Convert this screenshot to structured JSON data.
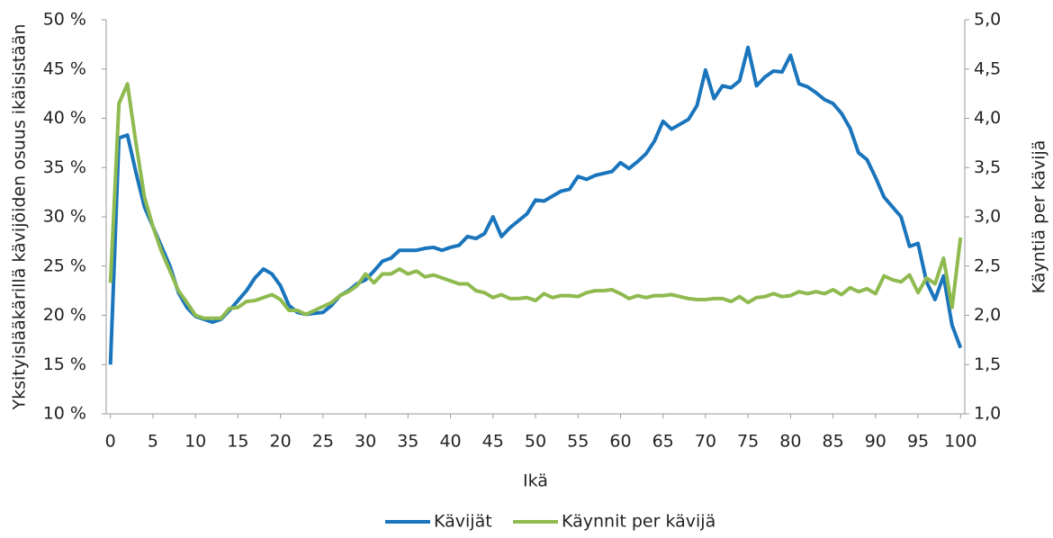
{
  "chart_data": {
    "type": "line",
    "x_label": "Ikä",
    "y_label": "Yksityislääkärillä kävijöiden osuus ikäisistään",
    "y2_label": "Käyntiä per kävijä",
    "x": [
      0,
      1,
      2,
      3,
      4,
      5,
      6,
      7,
      8,
      9,
      10,
      11,
      12,
      13,
      14,
      15,
      16,
      17,
      18,
      19,
      20,
      21,
      22,
      23,
      24,
      25,
      26,
      27,
      28,
      29,
      30,
      31,
      32,
      33,
      34,
      35,
      36,
      37,
      38,
      39,
      40,
      41,
      42,
      43,
      44,
      45,
      46,
      47,
      48,
      49,
      50,
      51,
      52,
      53,
      54,
      55,
      56,
      57,
      58,
      59,
      60,
      61,
      62,
      63,
      64,
      65,
      66,
      67,
      68,
      69,
      70,
      71,
      72,
      73,
      74,
      75,
      76,
      77,
      78,
      79,
      80,
      81,
      82,
      83,
      84,
      85,
      86,
      87,
      88,
      89,
      90,
      91,
      92,
      93,
      94,
      95,
      96,
      97,
      98,
      99,
      100
    ],
    "xlim": [
      -0.5,
      100.5
    ],
    "xticks": [
      0,
      5,
      10,
      15,
      20,
      25,
      30,
      35,
      40,
      45,
      50,
      55,
      60,
      65,
      70,
      75,
      80,
      85,
      90,
      95,
      100
    ],
    "ylim": [
      10,
      50
    ],
    "yticks": [
      {
        "value": 10,
        "label": "10 %"
      },
      {
        "value": 15,
        "label": "15 %"
      },
      {
        "value": 20,
        "label": "20 %"
      },
      {
        "value": 25,
        "label": "25 %"
      },
      {
        "value": 30,
        "label": "30 %"
      },
      {
        "value": 35,
        "label": "35 %"
      },
      {
        "value": 40,
        "label": "40 %"
      },
      {
        "value": 45,
        "label": "45 %"
      },
      {
        "value": 50,
        "label": "50 %"
      }
    ],
    "y2lim": [
      1,
      5
    ],
    "y2ticks": [
      {
        "value": 1,
        "label": "1,0"
      },
      {
        "value": 1.5,
        "label": "1,5"
      },
      {
        "value": 2,
        "label": "2,0"
      },
      {
        "value": 2.5,
        "label": "2,5"
      },
      {
        "value": 3,
        "label": "3,0"
      },
      {
        "value": 3.5,
        "label": "3,5"
      },
      {
        "value": 4,
        "label": "4,0"
      },
      {
        "value": 4.5,
        "label": "4,5"
      },
      {
        "value": 5,
        "label": "5,0"
      }
    ],
    "legend": "bottom",
    "series": [
      {
        "name": "Kävijät",
        "color": "#1a75bc",
        "values": [
          15.0,
          38.0,
          38.3,
          34.5,
          31.0,
          29.0,
          27.0,
          25.0,
          22.3,
          20.8,
          19.9,
          19.6,
          19.3,
          19.6,
          20.5,
          21.5,
          22.5,
          23.8,
          24.7,
          24.2,
          23.0,
          21.0,
          20.3,
          20.1,
          20.2,
          20.3,
          21.0,
          22.0,
          22.5,
          23.2,
          23.6,
          24.5,
          25.5,
          25.8,
          26.6,
          26.6,
          26.6,
          26.8,
          26.9,
          26.6,
          26.9,
          27.1,
          28.0,
          27.8,
          28.3,
          30.0,
          28.0,
          28.9,
          29.6,
          30.3,
          31.7,
          31.6,
          32.1,
          32.6,
          32.8,
          34.1,
          33.8,
          34.2,
          34.4,
          34.6,
          35.5,
          34.9,
          35.6,
          36.4,
          37.7,
          39.7,
          38.9,
          39.4,
          39.9,
          41.3,
          44.9,
          42.0,
          43.3,
          43.1,
          43.8,
          47.2,
          43.3,
          44.2,
          44.8,
          44.7,
          46.4,
          43.5,
          43.2,
          42.6,
          41.9,
          41.5,
          40.5,
          39.0,
          36.5,
          35.8,
          34.0,
          32.0,
          31.0,
          30.0,
          27.0,
          27.3,
          23.4,
          21.6,
          24.0,
          19.0,
          16.7
        ]
      },
      {
        "name": "Käynnit per kävijä",
        "color": "#8fba4f",
        "axis": "y2",
        "values": [
          2.33,
          4.15,
          4.35,
          3.75,
          3.2,
          2.9,
          2.65,
          2.45,
          2.25,
          2.13,
          2.0,
          1.97,
          1.97,
          1.97,
          2.07,
          2.08,
          2.14,
          2.15,
          2.18,
          2.21,
          2.16,
          2.05,
          2.05,
          2.01,
          2.05,
          2.09,
          2.13,
          2.2,
          2.24,
          2.3,
          2.42,
          2.33,
          2.42,
          2.42,
          2.47,
          2.42,
          2.45,
          2.39,
          2.41,
          2.38,
          2.35,
          2.32,
          2.32,
          2.25,
          2.23,
          2.18,
          2.21,
          2.17,
          2.17,
          2.18,
          2.15,
          2.22,
          2.18,
          2.2,
          2.2,
          2.19,
          2.23,
          2.25,
          2.25,
          2.26,
          2.22,
          2.17,
          2.2,
          2.18,
          2.2,
          2.2,
          2.21,
          2.19,
          2.17,
          2.16,
          2.16,
          2.17,
          2.17,
          2.14,
          2.19,
          2.13,
          2.18,
          2.19,
          2.22,
          2.19,
          2.2,
          2.24,
          2.22,
          2.24,
          2.22,
          2.26,
          2.21,
          2.28,
          2.24,
          2.27,
          2.22,
          2.4,
          2.36,
          2.34,
          2.41,
          2.23,
          2.38,
          2.32,
          2.58,
          2.08,
          2.79
        ]
      }
    ]
  }
}
